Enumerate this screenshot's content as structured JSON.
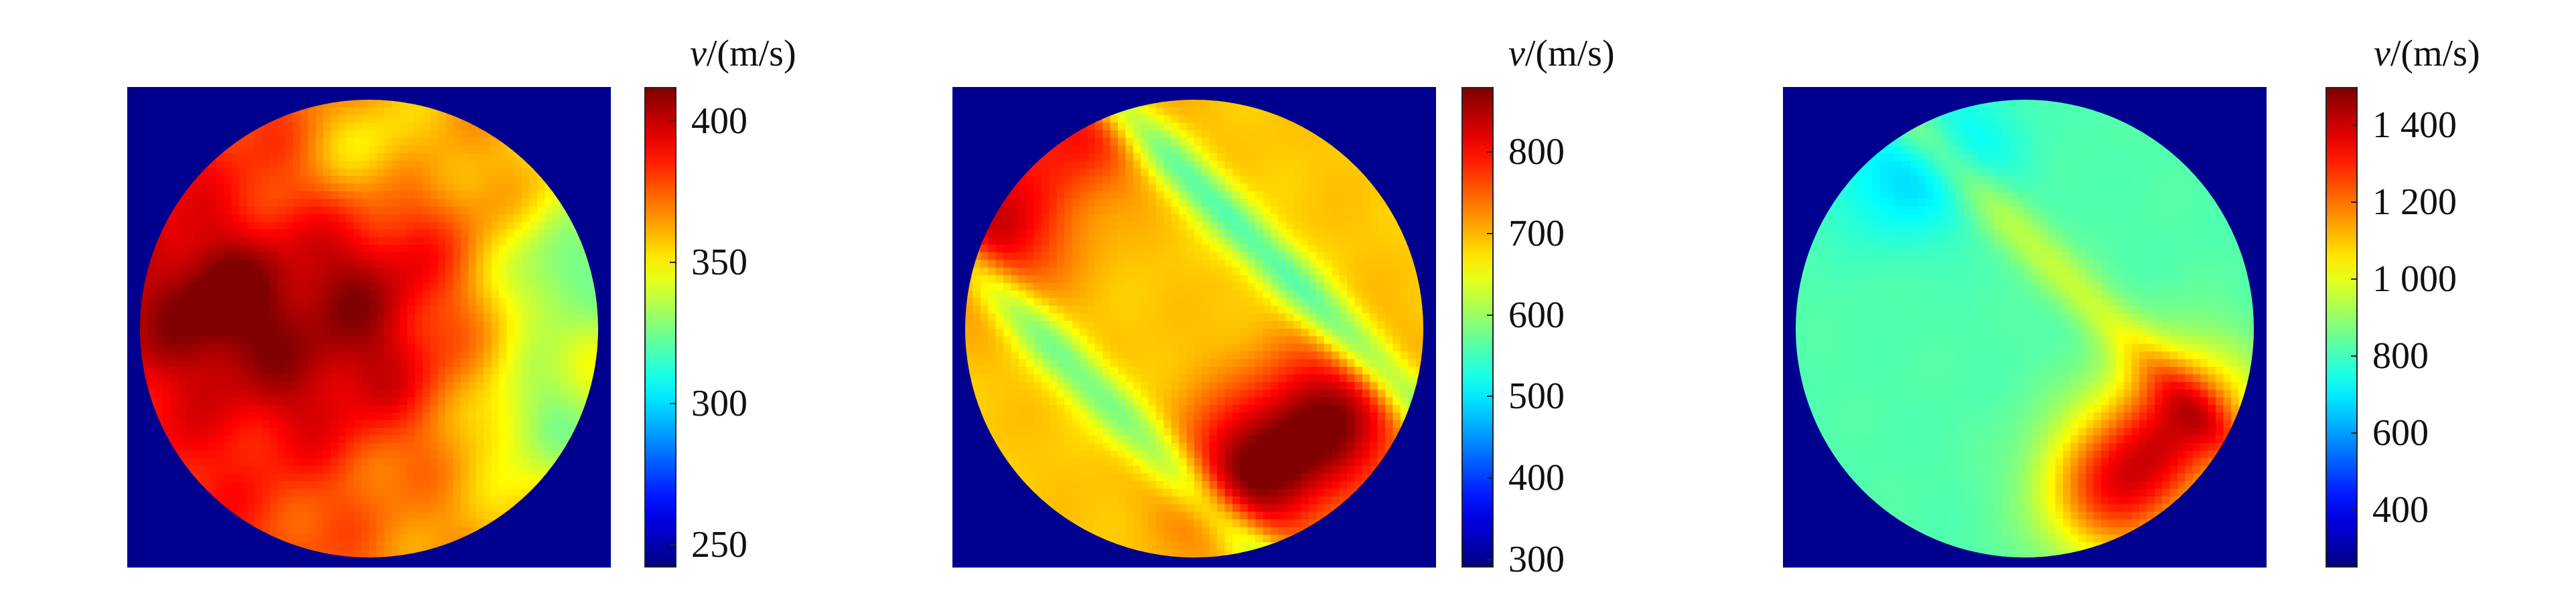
{
  "colors": {
    "background": "#00008f",
    "colormap": "jet"
  },
  "chart_data": [
    {
      "type": "heatmap",
      "colorbar_label_var": "v",
      "colorbar_label_unit": "/(m/s)",
      "colorbar_range": [
        242,
        412
      ],
      "colorbar_ticks": [
        250,
        300,
        350,
        400
      ],
      "colorbar_tick_labels": [
        "250",
        "300",
        "350",
        "400"
      ],
      "domain_shape": "circle",
      "field": {
        "base": 372,
        "gradient": {
          "angle_deg": 0,
          "delta": -20
        },
        "hotspots": [
          {
            "x": 0.18,
            "y": 0.45,
            "value": 405
          },
          {
            "x": 0.45,
            "y": 0.4,
            "value": 395
          },
          {
            "x": 0.55,
            "y": 0.58,
            "value": 392
          },
          {
            "x": 0.35,
            "y": 0.65,
            "value": 388
          },
          {
            "x": 0.62,
            "y": 0.32,
            "value": 385
          }
        ],
        "coolspots": [
          {
            "x": 0.92,
            "y": 0.38,
            "value": 340
          },
          {
            "x": 0.5,
            "y": 0.1,
            "value": 352
          },
          {
            "x": 0.88,
            "y": 0.7,
            "value": 345
          }
        ]
      }
    },
    {
      "type": "heatmap",
      "colorbar_label_var": "v",
      "colorbar_label_unit": "/(m/s)",
      "colorbar_range": [
        290,
        880
      ],
      "colorbar_ticks": [
        300,
        400,
        500,
        600,
        700,
        800
      ],
      "colorbar_tick_labels": [
        "300",
        "400",
        "500",
        "600",
        "700",
        "800"
      ],
      "domain_shape": "circle",
      "field": {
        "base": 690,
        "diagonal_bands": [
          {
            "value": 580,
            "offset": -0.35
          },
          {
            "value": 560,
            "offset": 0.32
          }
        ],
        "hotspots": [
          {
            "x": 0.62,
            "y": 0.82,
            "value": 860
          },
          {
            "x": 0.8,
            "y": 0.7,
            "value": 860
          },
          {
            "x": 0.05,
            "y": 0.28,
            "value": 840
          },
          {
            "x": 0.25,
            "y": 0.05,
            "value": 800
          }
        ],
        "coolspots": []
      }
    },
    {
      "type": "heatmap",
      "colorbar_label_var": "v",
      "colorbar_label_unit": "/(m/s)",
      "colorbar_range": [
        250,
        1500
      ],
      "colorbar_ticks": [
        400,
        600,
        800,
        1000,
        1200,
        1400
      ],
      "colorbar_tick_labels": [
        "400",
        "600",
        "800",
        "1 000",
        "1 200",
        "1 400"
      ],
      "domain_shape": "circle",
      "field": {
        "base": 820,
        "diagonal_bands": [
          {
            "value": 960,
            "offset": 0.2
          }
        ],
        "hotspots": [
          {
            "x": 0.7,
            "y": 0.85,
            "value": 1300
          },
          {
            "x": 0.85,
            "y": 0.7,
            "value": 1260
          }
        ],
        "coolspots": [
          {
            "x": 0.2,
            "y": 0.18,
            "value": 720
          },
          {
            "x": 0.35,
            "y": 0.12,
            "value": 710
          }
        ]
      }
    }
  ]
}
